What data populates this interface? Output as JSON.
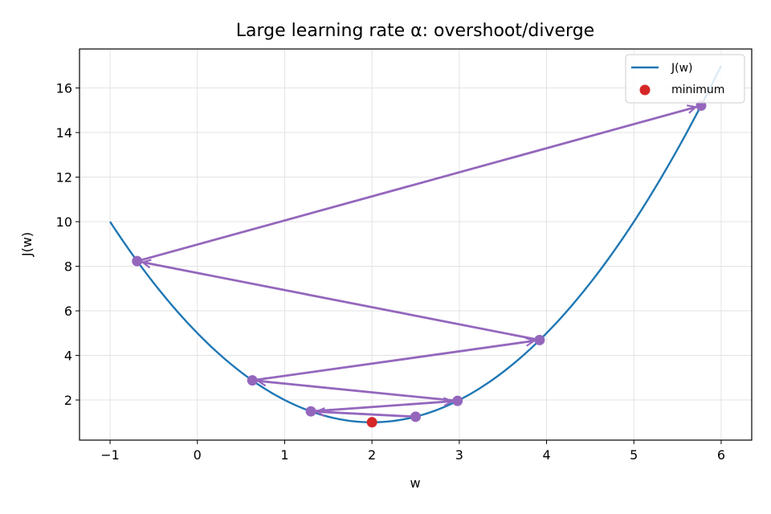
{
  "chart_data": {
    "type": "line",
    "title": "Large learning rate α: overshoot/diverge",
    "xlabel": "w",
    "ylabel": "J(w)",
    "xlim": [
      -1.35,
      6.35
    ],
    "ylim": [
      0.2,
      17.75
    ],
    "xticks": [
      -1,
      0,
      1,
      2,
      3,
      4,
      5,
      6
    ],
    "yticks": [
      2,
      4,
      6,
      8,
      10,
      12,
      14,
      16
    ],
    "grid": true,
    "legend_position": "top-right",
    "curve": {
      "name": "J(w)",
      "formula": "J(w) = (w - 2)^2 + 1",
      "x_range": [
        -1,
        6
      ],
      "color": "#1f77b4"
    },
    "minimum": {
      "name": "minimum",
      "x": 2,
      "y": 1,
      "color": "#d62728"
    },
    "iterates": {
      "color": "#9467bd",
      "points": [
        {
          "x": 2.5,
          "y": 1.25
        },
        {
          "x": 1.3,
          "y": 1.49
        },
        {
          "x": 2.98,
          "y": 1.96
        },
        {
          "x": 0.63,
          "y": 2.88
        },
        {
          "x": 3.92,
          "y": 4.69
        },
        {
          "x": -0.69,
          "y": 8.23
        },
        {
          "x": 5.77,
          "y": 15.21
        }
      ]
    },
    "legend": [
      {
        "label": "J(w)",
        "kind": "line",
        "color": "#1f77b4"
      },
      {
        "label": "minimum",
        "kind": "marker",
        "color": "#d62728"
      }
    ]
  }
}
